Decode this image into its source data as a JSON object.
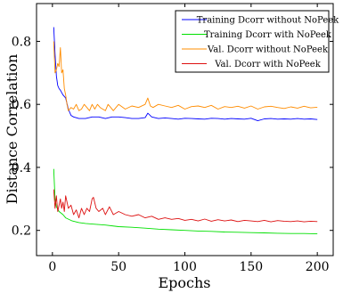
{
  "chart_data": {
    "type": "line",
    "title": "",
    "xlabel": "Epochs",
    "ylabel": "Distance Correlation",
    "xlim": [
      -12,
      212
    ],
    "ylim": [
      0.12,
      0.92
    ],
    "xticks": [
      0,
      50,
      100,
      150,
      200
    ],
    "yticks": [
      0.2,
      0.4,
      0.6,
      0.8
    ],
    "grid": false,
    "legend_position": "top-right",
    "series": [
      {
        "name": "Training Dcorr without NoPeek",
        "color": "#0000ff",
        "x": [
          1,
          2,
          3,
          4,
          5,
          6,
          8,
          10,
          12,
          14,
          16,
          20,
          25,
          30,
          35,
          40,
          45,
          50,
          55,
          60,
          65,
          70,
          72,
          75,
          80,
          85,
          90,
          95,
          100,
          105,
          110,
          115,
          120,
          125,
          130,
          135,
          140,
          145,
          150,
          155,
          160,
          165,
          170,
          175,
          180,
          185,
          190,
          195,
          200
        ],
        "y": [
          0.845,
          0.76,
          0.69,
          0.66,
          0.65,
          0.645,
          0.63,
          0.62,
          0.585,
          0.565,
          0.56,
          0.555,
          0.555,
          0.56,
          0.56,
          0.555,
          0.56,
          0.56,
          0.558,
          0.555,
          0.555,
          0.558,
          0.572,
          0.56,
          0.555,
          0.557,
          0.555,
          0.553,
          0.556,
          0.555,
          0.554,
          0.553,
          0.556,
          0.555,
          0.553,
          0.555,
          0.554,
          0.553,
          0.556,
          0.548,
          0.554,
          0.555,
          0.553,
          0.554,
          0.553,
          0.555,
          0.553,
          0.554,
          0.552
        ]
      },
      {
        "name": "Training Dcorr with NoPeek",
        "color": "#00e000",
        "x": [
          1,
          2,
          3,
          5,
          8,
          10,
          15,
          20,
          25,
          30,
          40,
          50,
          60,
          70,
          80,
          90,
          100,
          110,
          120,
          130,
          140,
          150,
          160,
          170,
          180,
          190,
          200
        ],
        "y": [
          0.395,
          0.3,
          0.275,
          0.26,
          0.25,
          0.24,
          0.23,
          0.225,
          0.222,
          0.22,
          0.217,
          0.212,
          0.21,
          0.207,
          0.204,
          0.202,
          0.2,
          0.198,
          0.197,
          0.195,
          0.194,
          0.193,
          0.192,
          0.191,
          0.19,
          0.19,
          0.189
        ]
      },
      {
        "name": "Val. Dcorr without NoPeek",
        "color": "#ff8c00",
        "x": [
          1,
          2,
          3,
          4,
          5,
          6,
          7,
          8,
          9,
          10,
          11,
          12,
          14,
          16,
          18,
          20,
          22,
          24,
          26,
          28,
          30,
          32,
          34,
          36,
          38,
          40,
          42,
          44,
          46,
          48,
          50,
          55,
          60,
          65,
          70,
          72,
          74,
          76,
          80,
          85,
          90,
          95,
          100,
          105,
          110,
          115,
          120,
          125,
          130,
          135,
          140,
          145,
          150,
          155,
          160,
          165,
          170,
          175,
          180,
          185,
          190,
          195,
          200
        ],
        "y": [
          0.8,
          0.7,
          0.71,
          0.73,
          0.72,
          0.78,
          0.7,
          0.71,
          0.65,
          0.63,
          0.6,
          0.58,
          0.59,
          0.585,
          0.6,
          0.58,
          0.585,
          0.6,
          0.59,
          0.58,
          0.6,
          0.585,
          0.6,
          0.59,
          0.585,
          0.58,
          0.6,
          0.59,
          0.58,
          0.59,
          0.6,
          0.585,
          0.595,
          0.59,
          0.6,
          0.62,
          0.595,
          0.59,
          0.6,
          0.595,
          0.59,
          0.597,
          0.585,
          0.593,
          0.595,
          0.59,
          0.597,
          0.585,
          0.593,
          0.59,
          0.594,
          0.588,
          0.595,
          0.585,
          0.592,
          0.594,
          0.59,
          0.587,
          0.592,
          0.588,
          0.594,
          0.589,
          0.591
        ]
      },
      {
        "name": "Val. Dcorr with NoPeek",
        "color": "#dd1010",
        "x": [
          1,
          2,
          3,
          4,
          5,
          6,
          7,
          8,
          9,
          10,
          12,
          14,
          16,
          18,
          20,
          22,
          24,
          26,
          28,
          30,
          31,
          33,
          35,
          38,
          40,
          43,
          46,
          50,
          55,
          60,
          65,
          70,
          75,
          80,
          85,
          90,
          95,
          100,
          105,
          110,
          115,
          120,
          125,
          130,
          135,
          140,
          145,
          150,
          155,
          160,
          165,
          170,
          175,
          180,
          185,
          190,
          195,
          200
        ],
        "y": [
          0.33,
          0.27,
          0.31,
          0.26,
          0.28,
          0.3,
          0.27,
          0.29,
          0.26,
          0.31,
          0.27,
          0.28,
          0.25,
          0.265,
          0.24,
          0.27,
          0.25,
          0.27,
          0.26,
          0.3,
          0.305,
          0.27,
          0.26,
          0.27,
          0.25,
          0.275,
          0.25,
          0.26,
          0.25,
          0.245,
          0.25,
          0.24,
          0.245,
          0.235,
          0.24,
          0.235,
          0.238,
          0.232,
          0.235,
          0.23,
          0.236,
          0.229,
          0.234,
          0.23,
          0.233,
          0.228,
          0.232,
          0.23,
          0.228,
          0.232,
          0.227,
          0.231,
          0.229,
          0.228,
          0.23,
          0.227,
          0.229,
          0.228
        ]
      }
    ]
  }
}
